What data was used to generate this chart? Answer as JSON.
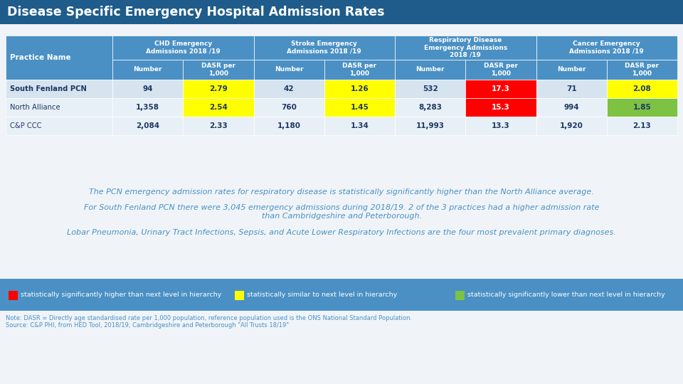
{
  "title": "Disease Specific Emergency Hospital Admission Rates",
  "title_bg": "#1F5C8B",
  "title_fg": "#FFFFFF",
  "header_bg": "#4A90C4",
  "header_fg": "#FFFFFF",
  "row_bg_pcn": "#D6E4F0",
  "row_bg_alliance": "#E8F0F7",
  "row_bg_cpp": "#E8F0F7",
  "page_bg": "#F0F4F8",
  "col_headers_1": [
    "CHD Emergency\nAdmissions 2018 /19",
    "Stroke Emergency\nAdmissions 2018 /19",
    "Respiratory Disease\nEmergency Admissions\n2018 /19",
    "Cancer Emergency\nAdmissions 2018 /19"
  ],
  "col_headers_2": [
    "Number",
    "DASR per\n1,000",
    "Number",
    "DASR per\n1,000",
    "Number",
    "DASR per\n1,000",
    "Number",
    "DASR per\n1,000"
  ],
  "row_labels": [
    "South Fenland PCN",
    "North Alliance",
    "C&P CCC"
  ],
  "table_data": [
    [
      "94",
      "2.79",
      "42",
      "1.26",
      "532",
      "17.3",
      "71",
      "2.08"
    ],
    [
      "1,358",
      "2.54",
      "760",
      "1.45",
      "8,283",
      "15.3",
      "994",
      "1.85"
    ],
    [
      "2,084",
      "2.33",
      "1,180",
      "1.34",
      "11,993",
      "13.3",
      "1,920",
      "2.13"
    ]
  ],
  "cell_colors": [
    [
      "none",
      "yellow",
      "none",
      "yellow",
      "none",
      "red",
      "none",
      "yellow"
    ],
    [
      "none",
      "yellow",
      "none",
      "yellow",
      "none",
      "red",
      "none",
      "green"
    ],
    [
      "none",
      "none",
      "none",
      "none",
      "none",
      "none",
      "none",
      "none"
    ]
  ],
  "yellow_color": "#FFFF00",
  "red_color": "#FF0000",
  "green_color": "#7DC242",
  "body_text_color": "#4A90C4",
  "text1": "The PCN emergency admission rates for respiratory disease is statistically significantly higher than the North Alliance average.",
  "text2": "For South Fenland PCN there were 3,045 emergency admissions during 2018/19. 2 of the 3 practices had a higher admission rate\nthan Cambridgeshire and Peterborough.",
  "text3": "Lobar Pneumonia, Urinary Tract Infections, Sepsis, and Acute Lower Respiratory Infections are the four most prevalent primary diagnoses.",
  "legend_bg": "#4A90C4",
  "legend_items": [
    {
      "color": "#FF0000",
      "text": "statistically significantly higher than next level in hierarchy"
    },
    {
      "color": "#FFFF00",
      "text": "statistically similar to next level in hierarchy"
    },
    {
      "color": "#7DC242",
      "text": "statistically significantly lower than next level in hierarchy"
    }
  ],
  "note_text": "Note: DASR = Directly age standardised rate per 1,000 population, reference population used is the ONS National Standard Population.\nSource: C&P PHI, from HED Tool, 2018/19; Cambridgeshire and Peterborough \"All Trusts 18/19\"",
  "table_label_color": "#1F3864"
}
